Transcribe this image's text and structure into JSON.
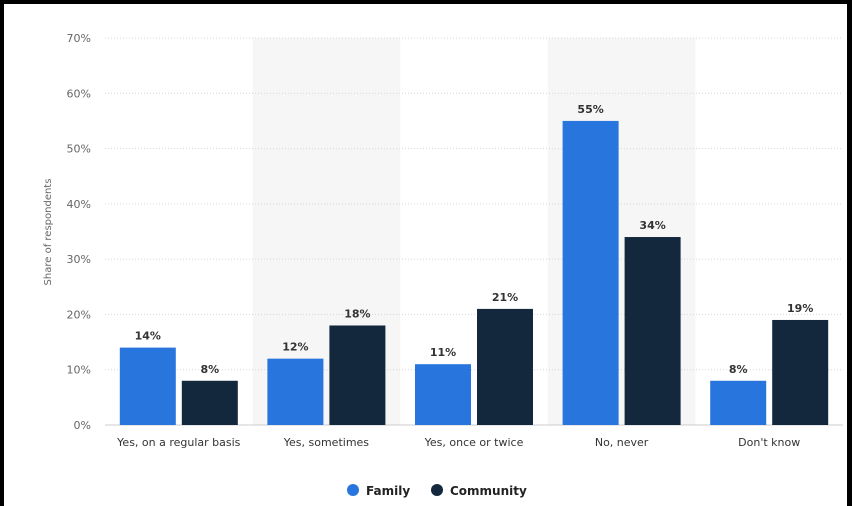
{
  "chart_data": {
    "type": "bar",
    "ylabel": "Share of respondents",
    "ylim": [
      0,
      70
    ],
    "yticks": [
      "0%",
      "10%",
      "20%",
      "30%",
      "40%",
      "50%",
      "60%",
      "70%"
    ],
    "categories": [
      "Yes, on a regular basis",
      "Yes, sometimes",
      "Yes, once or twice",
      "No, never",
      "Don't know"
    ],
    "series": [
      {
        "name": "Family",
        "color": "#2876dd",
        "values": [
          14,
          12,
          11,
          55,
          8
        ],
        "labels": [
          "14%",
          "12%",
          "11%",
          "55%",
          "8%"
        ]
      },
      {
        "name": "Community",
        "color": "#13283d",
        "values": [
          8,
          18,
          21,
          34,
          19
        ],
        "labels": [
          "8%",
          "18%",
          "21%",
          "34%",
          "19%"
        ]
      }
    ],
    "grid": true,
    "legend": "bottom-center",
    "shaded_bands": true
  }
}
